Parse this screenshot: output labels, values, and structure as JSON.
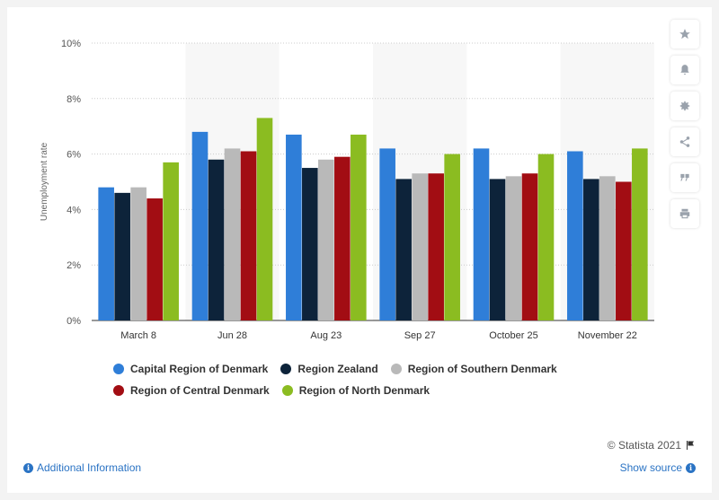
{
  "chart_data": {
    "type": "bar",
    "title": "",
    "xlabel": "",
    "ylabel": "Unemployment rate",
    "ylim": [
      0,
      10
    ],
    "yticks": [
      "0%",
      "2%",
      "4%",
      "6%",
      "8%",
      "10%"
    ],
    "categories": [
      "March 8",
      "Jun 28",
      "Aug 23",
      "Sep 27",
      "October 25",
      "November 22"
    ],
    "series": [
      {
        "name": "Capital Region of Denmark",
        "color": "#2f7ed8",
        "values": [
          4.8,
          6.8,
          6.7,
          6.2,
          6.2,
          6.1
        ]
      },
      {
        "name": "Region Zealand",
        "color": "#0d233a",
        "values": [
          4.6,
          5.8,
          5.5,
          5.1,
          5.1,
          5.1
        ]
      },
      {
        "name": "Region of Southern Denmark",
        "color": "#b9b9b9",
        "values": [
          4.8,
          6.2,
          5.8,
          5.3,
          5.2,
          5.2
        ]
      },
      {
        "name": "Region of Central Denmark",
        "color": "#a20d13",
        "values": [
          4.4,
          6.1,
          5.9,
          5.3,
          5.3,
          5.0
        ]
      },
      {
        "name": "Region of North Denmark",
        "color": "#8bbc21",
        "values": [
          5.7,
          7.3,
          6.7,
          6.0,
          6.0,
          6.2
        ]
      }
    ],
    "grid": true,
    "legend_position": "bottom"
  },
  "sidebar": {
    "icons": [
      "star-icon",
      "bell-icon",
      "gear-icon",
      "share-icon",
      "quote-icon",
      "print-icon"
    ]
  },
  "footer": {
    "credit": "© Statista 2021",
    "additional_info": "Additional Information",
    "show_source": "Show source"
  }
}
